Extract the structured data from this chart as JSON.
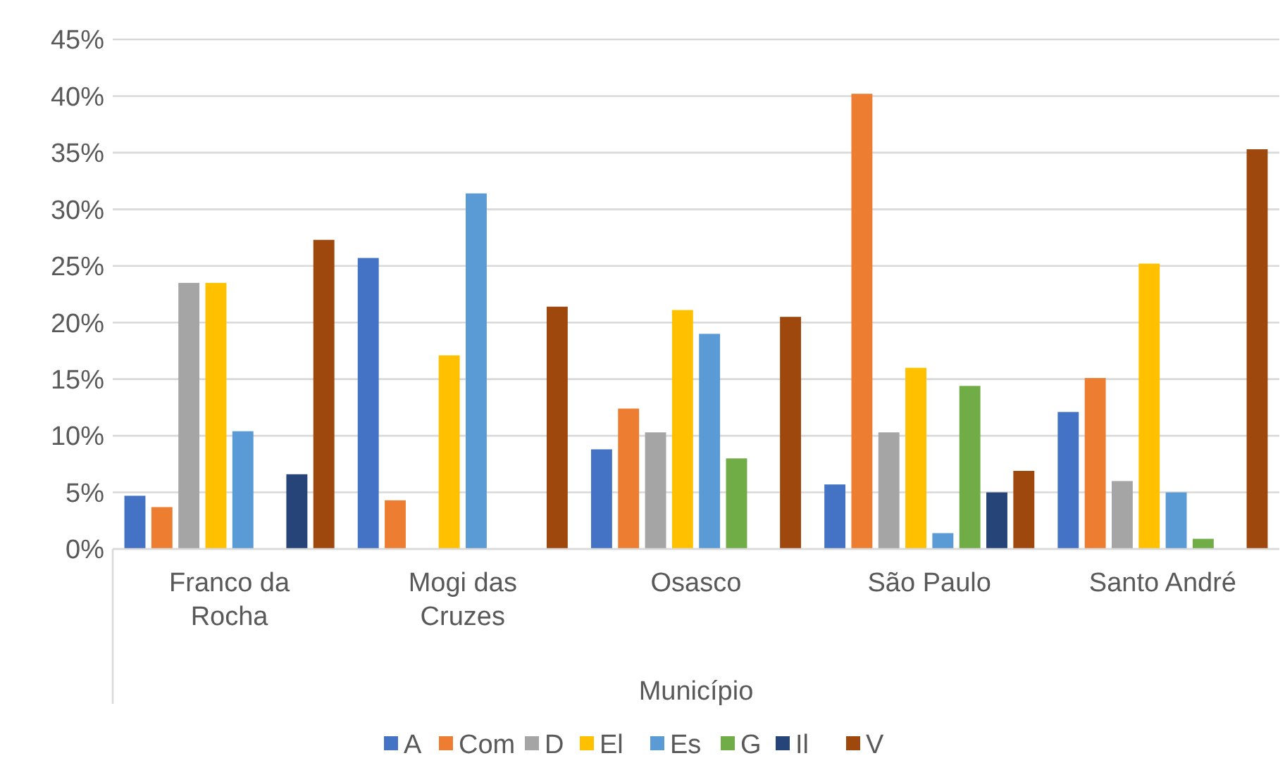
{
  "chart_data": {
    "type": "bar",
    "xlabel": "Município",
    "categories": [
      "Franco da Rocha",
      "Mogi das Cruzes",
      "Osasco",
      "São Paulo",
      "Santo André"
    ],
    "series": [
      {
        "name": "A",
        "color": "#4472c4",
        "values": [
          4.7,
          25.7,
          8.8,
          5.7,
          12.1
        ]
      },
      {
        "name": "Com",
        "color": "#ed7d31",
        "values": [
          3.7,
          4.3,
          12.4,
          40.2,
          15.1
        ]
      },
      {
        "name": "D",
        "color": "#a5a5a5",
        "values": [
          23.5,
          0,
          10.3,
          10.3,
          6.0
        ]
      },
      {
        "name": "El",
        "color": "#ffc000",
        "values": [
          23.5,
          17.1,
          21.1,
          16.0,
          25.2
        ]
      },
      {
        "name": "Es",
        "color": "#5b9bd5",
        "values": [
          10.4,
          31.4,
          19.0,
          1.4,
          5.0
        ]
      },
      {
        "name": "G",
        "color": "#70ad47",
        "values": [
          0,
          0,
          8.0,
          14.4,
          0.9
        ]
      },
      {
        "name": "Il",
        "color": "#264478",
        "values": [
          6.6,
          0,
          0,
          5.0,
          0
        ]
      },
      {
        "name": "V",
        "color": "#9e480e",
        "values": [
          27.3,
          21.4,
          20.5,
          6.9,
          35.3
        ]
      }
    ],
    "ylim": [
      0,
      45
    ],
    "yticks": [
      {
        "value": 0,
        "label": "0%"
      },
      {
        "value": 5,
        "label": "5%"
      },
      {
        "value": 10,
        "label": "10%"
      },
      {
        "value": 15,
        "label": "15%"
      },
      {
        "value": 20,
        "label": "20%"
      },
      {
        "value": 25,
        "label": "25%"
      },
      {
        "value": 30,
        "label": "30%"
      },
      {
        "value": 35,
        "label": "35%"
      },
      {
        "value": 40,
        "label": "40%"
      },
      {
        "value": 45,
        "label": "45%"
      }
    ],
    "grid": true,
    "legend": "bottom"
  }
}
